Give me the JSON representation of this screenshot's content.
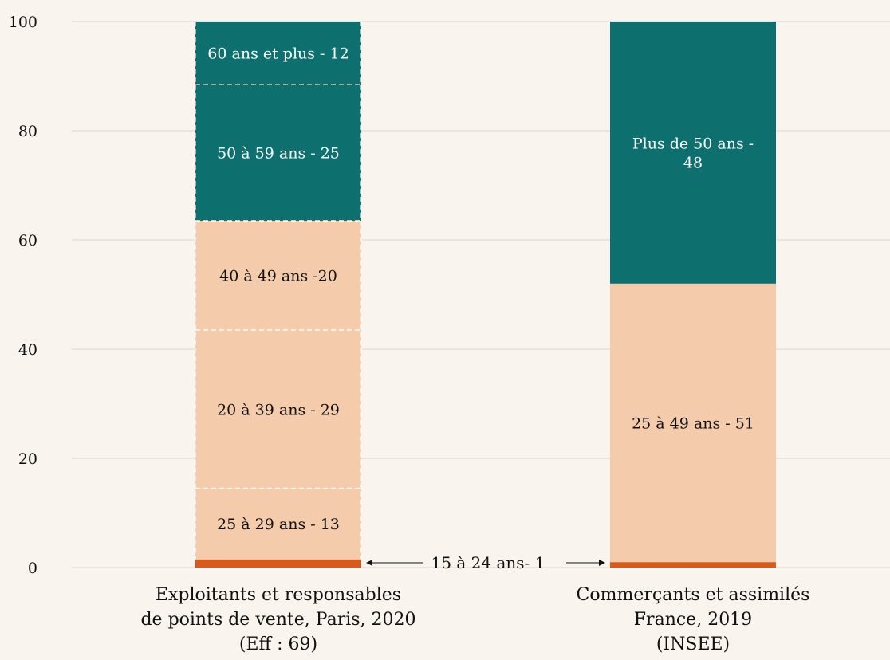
{
  "chart_data": {
    "type": "bar",
    "stacked": true,
    "ylim": [
      0,
      100
    ],
    "yticks": [
      0,
      20,
      40,
      60,
      80,
      100
    ],
    "grid": "horizontal",
    "categories": [
      {
        "id": "paris",
        "label_lines": [
          "Exploitants et responsables",
          "de points de vente, Paris, 2020",
          "(Eff : 69)"
        ],
        "segment_style": "dashed",
        "segments": [
          {
            "value": 1.5,
            "color": "#d95b1c",
            "label": ""
          },
          {
            "value": 13,
            "color": "#f4cbab",
            "label": "25 à 29 ans - 13"
          },
          {
            "value": 29,
            "color": "#f4cbab",
            "label": "20 à 39 ans - 29"
          },
          {
            "value": 20,
            "color": "#f4cbab",
            "label": "40 à 49 ans -20"
          },
          {
            "value": 25,
            "color": "#0d6f6e",
            "label": "50 à 59 ans - 25"
          },
          {
            "value": 11.5,
            "color": "#0d6f6e",
            "label": "60 ans et plus - 12"
          }
        ]
      },
      {
        "id": "france",
        "label_lines": [
          "Commerçants et assimilés",
          "France, 2019",
          "(INSEE)"
        ],
        "segment_style": "solid",
        "segments": [
          {
            "value": 1,
            "color": "#d95b1c",
            "label": ""
          },
          {
            "value": 51,
            "color": "#f4cbab",
            "label": "25 à 49 ans - 51"
          },
          {
            "value": 48,
            "color": "#0d6f6e",
            "label_lines": [
              "Plus de 50 ans -",
              "48"
            ]
          }
        ]
      }
    ],
    "callout": {
      "text": "15 à 24 ans- 1"
    }
  }
}
